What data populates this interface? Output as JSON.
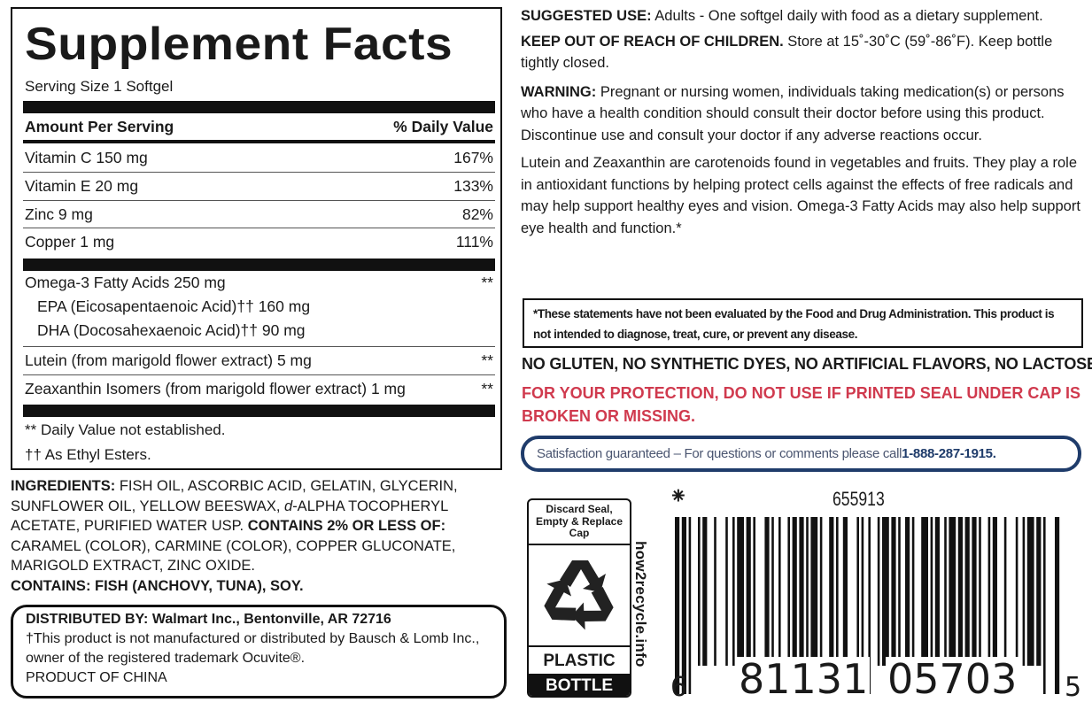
{
  "facts": {
    "title": "Supplement Facts",
    "serving": "Serving Size 1 Softgel",
    "header": {
      "amount": "Amount Per Serving",
      "dv": "% Daily Value"
    },
    "vitamins": [
      {
        "name": "Vitamin C 150 mg",
        "dv": "167%"
      },
      {
        "name": "Vitamin E 20 mg",
        "dv": "133%"
      },
      {
        "name": "Zinc 9 mg",
        "dv": "82%"
      },
      {
        "name": "Copper 1 mg",
        "dv": "111%"
      }
    ],
    "omega": {
      "name": "Omega-3 Fatty Acids 250 mg",
      "dv": "**",
      "epa": "EPA (Eicosapentaenoic Acid)†† 160 mg",
      "dha": "DHA (Docosahexaenoic Acid)†† 90 mg"
    },
    "lutein": {
      "name": "Lutein (from marigold flower extract) 5 mg",
      "dv": "**"
    },
    "zeax": {
      "name": "Zeaxanthin Isomers (from marigold flower extract) 1 mg",
      "dv": "**"
    },
    "foot1": "** Daily Value not established.",
    "foot2": "†† As Ethyl Esters."
  },
  "ingredients": {
    "label": "INGREDIENTS:",
    "text1": " FISH OIL, ASCORBIC ACID, GELATIN, GLYCERIN, SUNFLOWER OIL, YELLOW BEESWAX, ",
    "dalpha": "d",
    "text2": "-ALPHA TOCOPHERYL ACETATE, PURIFIED WATER USP. ",
    "contains2": "CONTAINS 2% OR LESS OF:",
    "text3": " CARAMEL (COLOR), CARMINE (COLOR), COPPER GLUCONATE, MARIGOLD EXTRACT, ZINC OXIDE.",
    "contains": "CONTAINS: FISH (ANCHOVY, TUNA), SOY."
  },
  "distributed": {
    "line1": "DISTRIBUTED BY: Walmart Inc., Bentonville, AR 72716",
    "line2": "†This product is not manufactured or distributed by Bausch & Lomb Inc., owner of the registered trademark Ocuvite®.",
    "line3": "PRODUCT OF CHINA"
  },
  "right": {
    "use_label": "SUGGESTED USE:",
    "use": " Adults - One softgel daily with food as a dietary supplement.",
    "keep_label": "KEEP OUT OF REACH OF CHILDREN.",
    "keep": " Store at 15˚-30˚C (59˚-86˚F). Keep bottle tightly closed.",
    "warn_label": "WARNING:",
    "warn": " Pregnant or nursing women, individuals taking medication(s) or persons who have a health condition should consult their doctor before using this product. Discontinue use and consult your doctor if any adverse reactions occur.",
    "lutein": "Lutein and Zeaxanthin are carotenoids found in vegetables and fruits. They play a role in antioxidant functions by helping protect cells against the effects of free radicals and may help support healthy eyes and vision. Omega-3 Fatty Acids may also help support eye health and function.*",
    "fda": "*These statements have not been evaluated by the Food and Drug Administration. This product is not intended to diagnose, treat, cure, or prevent any disease.",
    "no": "NO GLUTEN, NO SYNTHETIC DYES, NO ARTIFICIAL FLAVORS, NO LACTOSE",
    "protection": "FOR YOUR PROTECTION, DO NOT USE IF PRINTED SEAL UNDER CAP IS BROKEN OR MISSING.",
    "sat": "Satisfaction guaranteed – For questions or comments please call ",
    "phone": "1-888-287-1915."
  },
  "recycle": {
    "top": "Discard Seal, Empty & Replace Cap",
    "plastic": "PLASTIC",
    "bottle": "BOTTLE",
    "site": "how2recycle.info",
    "icon": "recycle-icon"
  },
  "barcode": {
    "code": "655913",
    "first": "6",
    "left": "81131",
    "right": "05703",
    "last": "5",
    "icon": "spark-icon"
  },
  "colors": {
    "warning_red": "#d03a4e",
    "navy": "#1f3c6b"
  }
}
